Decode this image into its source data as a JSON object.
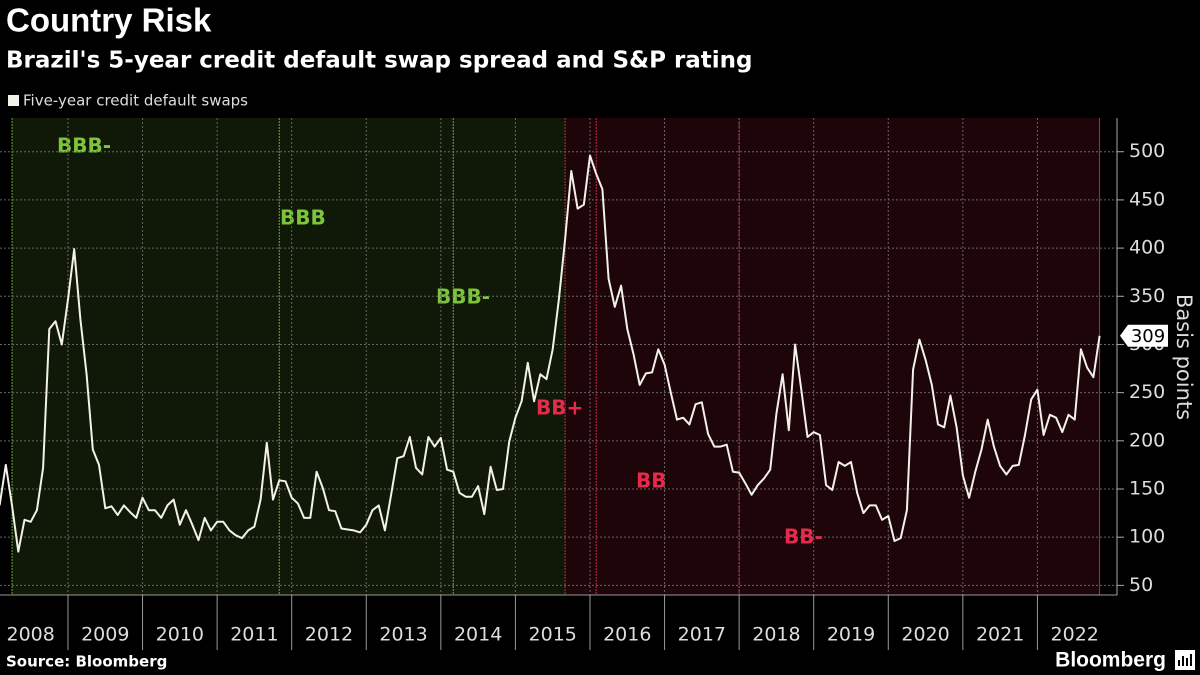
{
  "chart_data": {
    "type": "line",
    "title": "Country Risk",
    "subtitle": "Brazil's 5-year credit default swap spread and S&P rating",
    "y_axis_label": "Basis points",
    "source": "Source: Bloomberg",
    "brand": "Bloomberg",
    "x": [
      "2008-02",
      "2008-03",
      "2008-04",
      "2008-05",
      "2008-06",
      "2008-07",
      "2008-08",
      "2008-09",
      "2008-10",
      "2008-11",
      "2008-12",
      "2009-01",
      "2009-02",
      "2009-03",
      "2009-04",
      "2009-05",
      "2009-06",
      "2009-07",
      "2009-08",
      "2009-09",
      "2009-10",
      "2009-11",
      "2009-12",
      "2010-01",
      "2010-02",
      "2010-03",
      "2010-04",
      "2010-05",
      "2010-06",
      "2010-07",
      "2010-08",
      "2010-09",
      "2010-10",
      "2010-11",
      "2010-12",
      "2011-01",
      "2011-02",
      "2011-03",
      "2011-04",
      "2011-05",
      "2011-06",
      "2011-07",
      "2011-08",
      "2011-09",
      "2011-10",
      "2011-11",
      "2011-12",
      "2012-01",
      "2012-02",
      "2012-03",
      "2012-04",
      "2012-05",
      "2012-06",
      "2012-07",
      "2012-08",
      "2012-09",
      "2012-10",
      "2012-11",
      "2012-12",
      "2013-01",
      "2013-02",
      "2013-03",
      "2013-04",
      "2013-05",
      "2013-06",
      "2013-07",
      "2013-08",
      "2013-09",
      "2013-10",
      "2013-11",
      "2013-12",
      "2014-01",
      "2014-02",
      "2014-03",
      "2014-04",
      "2014-05",
      "2014-06",
      "2014-07",
      "2014-08",
      "2014-09",
      "2014-10",
      "2014-11",
      "2014-12",
      "2015-01",
      "2015-02",
      "2015-03",
      "2015-04",
      "2015-05",
      "2015-06",
      "2015-07",
      "2015-08",
      "2015-09",
      "2015-10",
      "2015-11",
      "2015-12",
      "2016-01",
      "2016-02",
      "2016-03",
      "2016-04",
      "2016-05",
      "2016-06",
      "2016-07",
      "2016-08",
      "2016-09",
      "2016-10",
      "2016-11",
      "2016-12",
      "2017-01",
      "2017-02",
      "2017-03",
      "2017-04",
      "2017-05",
      "2017-06",
      "2017-07",
      "2017-08",
      "2017-09",
      "2017-10",
      "2017-11",
      "2017-12",
      "2018-01",
      "2018-02",
      "2018-03",
      "2018-04",
      "2018-05",
      "2018-06",
      "2018-07",
      "2018-08",
      "2018-09",
      "2018-10",
      "2018-11",
      "2018-12",
      "2019-01",
      "2019-02",
      "2019-03",
      "2019-04",
      "2019-05",
      "2019-06",
      "2019-07",
      "2019-08",
      "2019-09",
      "2019-10",
      "2019-11",
      "2019-12",
      "2020-01",
      "2020-02",
      "2020-03",
      "2020-04",
      "2020-05",
      "2020-06",
      "2020-07",
      "2020-08",
      "2020-09",
      "2020-10",
      "2020-11",
      "2020-12",
      "2021-01",
      "2021-02",
      "2021-03",
      "2021-04",
      "2021-05",
      "2021-06",
      "2021-07",
      "2021-08",
      "2021-09",
      "2021-10",
      "2021-11",
      "2021-12",
      "2022-01",
      "2022-02",
      "2022-03",
      "2022-04",
      "2022-05",
      "2022-06",
      "2022-07",
      "2022-08",
      "2022-09",
      "2022-10",
      "2022-11"
    ],
    "series": [
      {
        "name": "Five-year credit default swaps",
        "color": "#f3f1ea",
        "values": [
          133,
          175,
          133,
          85,
          118,
          116,
          128,
          172,
          316,
          324,
          300,
          347,
          399,
          326,
          269,
          191,
          175,
          130,
          132,
          123,
          133,
          126,
          120,
          141,
          128,
          128,
          120,
          133,
          139,
          113,
          128,
          113,
          97,
          120,
          107,
          116,
          116,
          107,
          102,
          99,
          107,
          111,
          139,
          198,
          139,
          159,
          158,
          141,
          135,
          120,
          120,
          168,
          151,
          128,
          127,
          109,
          108,
          107,
          105,
          113,
          128,
          133,
          107,
          144,
          182,
          184,
          204,
          172,
          165,
          204,
          194,
          203,
          170,
          168,
          146,
          142,
          142,
          153,
          124,
          173,
          149,
          150,
          199,
          224,
          241,
          281,
          241,
          269,
          264,
          295,
          347,
          409,
          480,
          441,
          445,
          496,
          477,
          461,
          368,
          339,
          361,
          316,
          290,
          258,
          270,
          271,
          295,
          279,
          250,
          222,
          224,
          217,
          238,
          240,
          207,
          194,
          194,
          196,
          168,
          167,
          156,
          144,
          154,
          161,
          170,
          228,
          269,
          211,
          300,
          253,
          204,
          209,
          206,
          154,
          149,
          178,
          174,
          178,
          146,
          125,
          133,
          133,
          118,
          122,
          96,
          99,
          128,
          274,
          305,
          284,
          258,
          217,
          214,
          247,
          214,
          164,
          141,
          168,
          191,
          222,
          194,
          174,
          165,
          174,
          175,
          206,
          243,
          253,
          206,
          227,
          224,
          209,
          227,
          222,
          295,
          276,
          266,
          309
        ]
      }
    ],
    "xlim": [
      2008,
      2023
    ],
    "xticks": [
      2008,
      2009,
      2010,
      2011,
      2012,
      2013,
      2014,
      2015,
      2016,
      2017,
      2018,
      2019,
      2020,
      2021,
      2022
    ],
    "ylim": [
      40,
      535
    ],
    "yticks": [
      50,
      100,
      150,
      200,
      250,
      300,
      350,
      400,
      450,
      500
    ],
    "grid": true,
    "annotations": [
      {
        "label": "BBB-",
        "date": "2008-04",
        "color": "#7cc43a"
      },
      {
        "label": "BBB",
        "date": "2011-11",
        "color": "#7cc43a"
      },
      {
        "label": "BBB-",
        "date": "2014-03",
        "color": "#7cc43a"
      },
      {
        "label": "BB+",
        "date": "2015-09",
        "color": "#e8294a"
      },
      {
        "label": "BB",
        "date": "2016-02",
        "color": "#e8294a"
      },
      {
        "label": "BB-",
        "date": "2018-01",
        "color": "#e8294a"
      }
    ]
  }
}
